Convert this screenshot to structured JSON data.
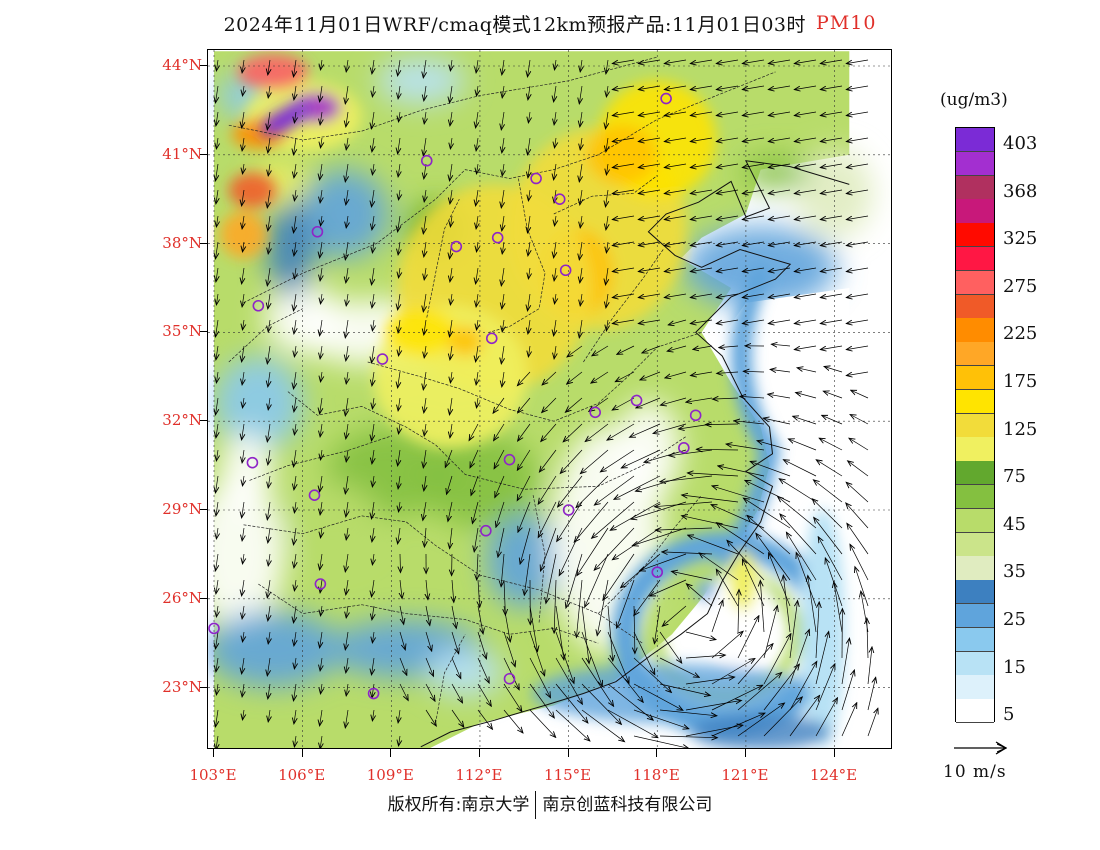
{
  "title": {
    "main": "2024年11月01日WRF/cmaq模式12km预报产品:11月01日03时",
    "species": "PM10"
  },
  "lat_labels": [
    "44°N",
    "41°N",
    "38°N",
    "35°N",
    "32°N",
    "29°N",
    "26°N",
    "23°N"
  ],
  "lon_labels": [
    "103°E",
    "106°E",
    "109°E",
    "112°E",
    "115°E",
    "118°E",
    "121°E",
    "124°E"
  ],
  "legend": {
    "unit": "(ug/m3)",
    "labels": [
      "403",
      "368",
      "325",
      "275",
      "225",
      "175",
      "125",
      "75",
      "45",
      "35",
      "25",
      "15",
      "5"
    ],
    "colors": [
      "#7b2bd6",
      "#a32fd0",
      "#b0305f",
      "#c8187a",
      "#ff0a00",
      "#ff1744",
      "#ff6060",
      "#f05a28",
      "#ff8c00",
      "#ffa726",
      "#ffc107",
      "#ffe400",
      "#f2dc3a",
      "#f0f060",
      "#62a82e",
      "#84c040",
      "#b8dc6a",
      "#cbe48a",
      "#e0ecc0",
      "#3d80c0",
      "#5fa4dc",
      "#8ac9ee",
      "#b8e2f5",
      "#ddf1fb",
      "#ffffff"
    ]
  },
  "wind_key": {
    "label": "10 m/s"
  },
  "footer": {
    "copyright": "版权所有:南京大学",
    "company": "南京创蓝科技有限公司"
  },
  "map": {
    "stations": [
      {
        "lon": 118.3,
        "lat": 42.9
      },
      {
        "lon": 110.2,
        "lat": 40.8
      },
      {
        "lon": 113.9,
        "lat": 40.2
      },
      {
        "lon": 114.7,
        "lat": 39.5
      },
      {
        "lon": 106.5,
        "lat": 38.4
      },
      {
        "lon": 111.2,
        "lat": 37.9
      },
      {
        "lon": 112.6,
        "lat": 38.2
      },
      {
        "lon": 114.9,
        "lat": 37.1
      },
      {
        "lon": 104.5,
        "lat": 35.9
      },
      {
        "lon": 112.4,
        "lat": 34.8
      },
      {
        "lon": 108.7,
        "lat": 34.1
      },
      {
        "lon": 115.9,
        "lat": 32.3
      },
      {
        "lon": 117.3,
        "lat": 32.7
      },
      {
        "lon": 119.3,
        "lat": 32.2
      },
      {
        "lon": 118.9,
        "lat": 31.1
      },
      {
        "lon": 104.3,
        "lat": 30.6
      },
      {
        "lon": 113.0,
        "lat": 30.7
      },
      {
        "lon": 106.4,
        "lat": 29.5
      },
      {
        "lon": 112.2,
        "lat": 28.3
      },
      {
        "lon": 115.0,
        "lat": 29.0
      },
      {
        "lon": 118.0,
        "lat": 26.9
      },
      {
        "lon": 106.6,
        "lat": 26.5
      },
      {
        "lon": 103.0,
        "lat": 25.0
      },
      {
        "lon": 108.4,
        "lat": 22.8
      },
      {
        "lon": 113.0,
        "lat": 23.3
      }
    ],
    "pollution_blobs": [
      {
        "lon": 116.0,
        "lat": 38.5,
        "rx": 3.0,
        "ry": 3.4,
        "level": 12
      },
      {
        "lon": 118.0,
        "lat": 41.5,
        "rx": 2.0,
        "ry": 2.0,
        "level": 11
      },
      {
        "lon": 115.3,
        "lat": 37.0,
        "rx": 1.2,
        "ry": 1.5,
        "level": 10
      },
      {
        "lon": 116.8,
        "lat": 41.0,
        "rx": 1.2,
        "ry": 1.0,
        "level": 10
      },
      {
        "lon": 112.5,
        "lat": 36.5,
        "rx": 3.3,
        "ry": 3.5,
        "level": 12
      },
      {
        "lon": 111.0,
        "lat": 33.5,
        "rx": 2.6,
        "ry": 2.4,
        "level": 13
      },
      {
        "lon": 110.0,
        "lat": 35.0,
        "rx": 1.2,
        "ry": 0.8,
        "level": 11
      },
      {
        "lon": 111.5,
        "lat": 34.7,
        "rx": 0.6,
        "ry": 0.5,
        "level": 10
      },
      {
        "lon": 106.0,
        "lat": 42.3,
        "rx": 2.0,
        "ry": 1.2,
        "level": 13
      },
      {
        "lon": 106.5,
        "lat": 42.6,
        "rx": 0.8,
        "ry": 0.5,
        "level": 1
      },
      {
        "lon": 105.0,
        "lat": 43.8,
        "rx": 1.2,
        "ry": 0.6,
        "level": 6
      },
      {
        "lon": 104.3,
        "lat": 39.8,
        "rx": 0.8,
        "ry": 0.6,
        "level": 7
      },
      {
        "lon": 104.0,
        "lat": 38.3,
        "rx": 0.8,
        "ry": 0.8,
        "level": 9
      },
      {
        "lon": 104.5,
        "lat": 41.7,
        "rx": 0.9,
        "ry": 0.5,
        "level": 8
      }
    ],
    "wind_center": {
      "lon": 119.2,
      "lat": 25.3
    }
  }
}
